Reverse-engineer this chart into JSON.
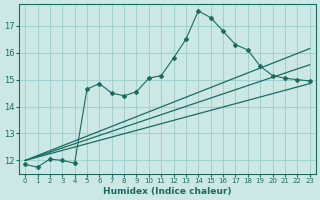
{
  "bg_color": "#cce8e4",
  "line_color": "#1a6b60",
  "grid_color": "#99cccc",
  "xlabel": "Humidex (Indice chaleur)",
  "xlim": [
    -0.5,
    23.5
  ],
  "ylim": [
    11.5,
    17.8
  ],
  "yticks": [
    12,
    13,
    14,
    15,
    16,
    17
  ],
  "xticks": [
    0,
    1,
    2,
    3,
    4,
    5,
    6,
    7,
    8,
    9,
    10,
    11,
    12,
    13,
    14,
    15,
    16,
    17,
    18,
    19,
    20,
    21,
    22,
    23
  ],
  "scatter_x": [
    0,
    1,
    2,
    3,
    4,
    5,
    6,
    7,
    8,
    9,
    10,
    11,
    12,
    13,
    14,
    15,
    16,
    17,
    18,
    19,
    20,
    21,
    22,
    23
  ],
  "scatter_y": [
    11.85,
    11.75,
    12.05,
    12.0,
    11.9,
    14.65,
    14.85,
    14.5,
    14.4,
    14.55,
    15.05,
    15.15,
    15.8,
    16.5,
    17.55,
    17.3,
    16.8,
    16.3,
    16.1,
    15.5,
    15.15,
    15.05,
    15.0,
    14.95
  ],
  "trend1_x": [
    0,
    23
  ],
  "trend1_y": [
    12.0,
    14.85
  ],
  "trend2_x": [
    0,
    23
  ],
  "trend2_y": [
    12.0,
    15.55
  ],
  "trend3_x": [
    0,
    23
  ],
  "trend3_y": [
    12.0,
    16.15
  ]
}
